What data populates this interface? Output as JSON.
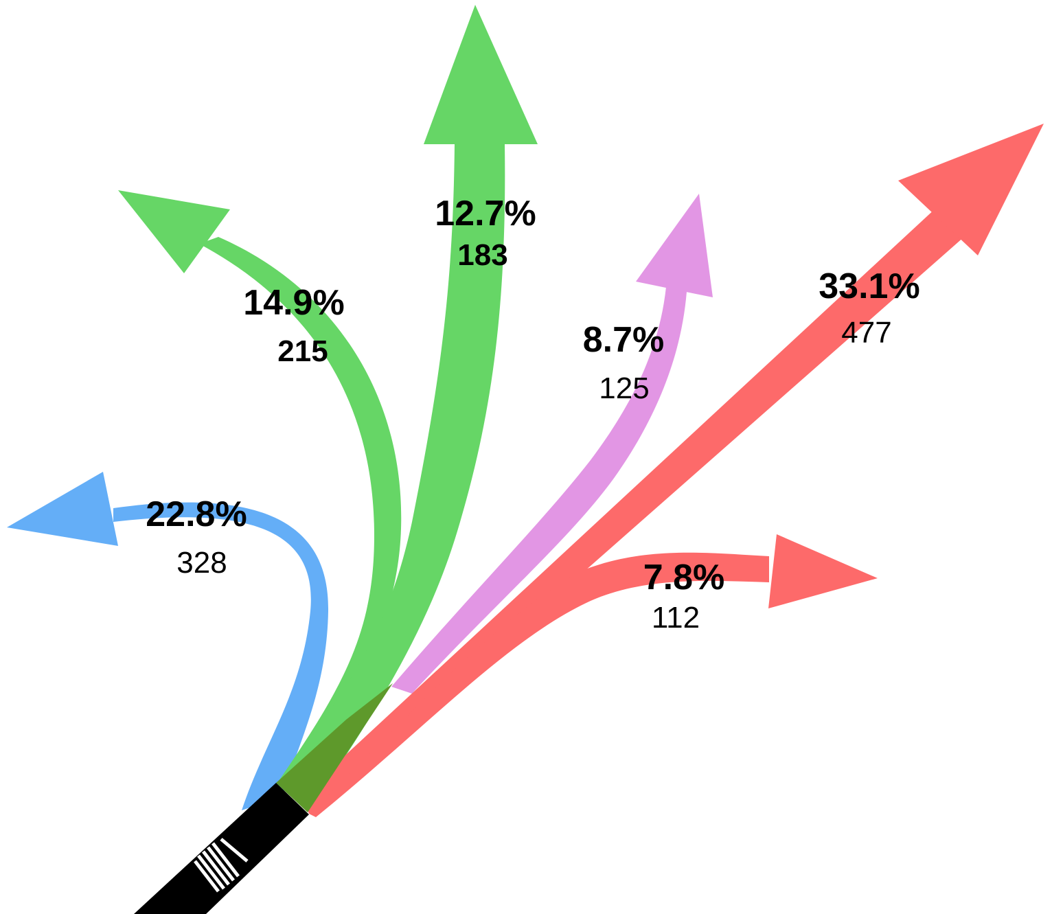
{
  "colors": {
    "blue": "#64aef7",
    "green": "#66d666",
    "pink": "#e296e4",
    "red": "#fd6a6a",
    "approach": "#000000",
    "overlap": "#5e992b"
  },
  "icons": {
    "approach": "crosswalk-icon"
  },
  "movements": [
    {
      "id": "u-turn-left",
      "percent": "22.8%",
      "count": "328",
      "color": "blue"
    },
    {
      "id": "left-turn",
      "percent": "14.9%",
      "count": "215",
      "color": "green"
    },
    {
      "id": "through-left",
      "percent": "12.7%",
      "count": "183",
      "color": "green"
    },
    {
      "id": "bear-right",
      "percent": "8.7%",
      "count": "125",
      "color": "pink"
    },
    {
      "id": "through-right",
      "percent": "33.1%",
      "count": "477",
      "color": "red"
    },
    {
      "id": "right-turn",
      "percent": "7.8%",
      "count": "112",
      "color": "red"
    }
  ]
}
